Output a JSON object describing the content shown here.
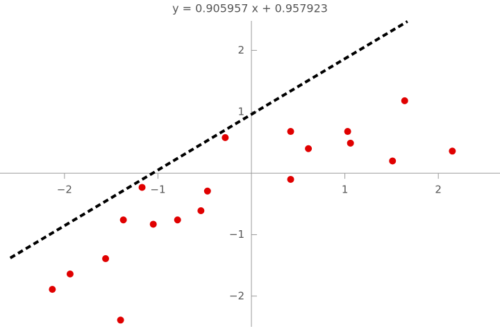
{
  "chart_data": {
    "type": "scatter",
    "title": "y = 0.905957 x + 0.957923",
    "x": [
      -2.13,
      -1.94,
      -1.56,
      -1.4,
      -1.37,
      -1.17,
      -1.05,
      -0.79,
      -0.54,
      -0.47,
      -0.28,
      0.42,
      0.42,
      0.61,
      1.03,
      1.06,
      1.51,
      1.64,
      2.15
    ],
    "values": [
      -1.89,
      -1.64,
      -1.39,
      -2.39,
      -0.76,
      -0.23,
      -0.83,
      -0.76,
      -0.61,
      -0.29,
      0.58,
      0.68,
      -0.1,
      0.4,
      0.68,
      0.49,
      0.2,
      1.18,
      0.36
    ],
    "color": "#e00000",
    "fit": {
      "slope": 0.905957,
      "intercept": 0.957923,
      "x": [
        -2.58,
        1.67
      ],
      "color": "#000000"
    },
    "xlim": [
      -2.69,
      2.66
    ],
    "ylim": [
      -2.5,
      2.48
    ],
    "xticks": [
      {
        "value": -2,
        "label": "−2"
      },
      {
        "value": -1,
        "label": "−1"
      },
      1,
      2
    ],
    "yticks": [
      {
        "value": -2,
        "label": "−2"
      },
      {
        "value": -1,
        "label": "−1"
      },
      1,
      2
    ]
  }
}
